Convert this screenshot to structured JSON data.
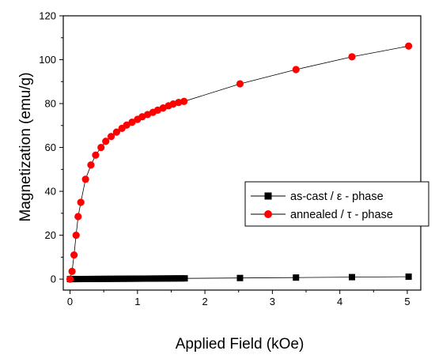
{
  "chart_data": {
    "type": "line",
    "title": "",
    "xlabel": "Applied Field (kOe)",
    "ylabel": "Magnetization (emu/g)",
    "xlim": [
      -0.1,
      5.2
    ],
    "ylim": [
      -5,
      120
    ],
    "xticks": [
      0,
      1,
      2,
      3,
      4,
      5
    ],
    "yticks": [
      0,
      20,
      40,
      60,
      80,
      100,
      120
    ],
    "grid": false,
    "legend_position": "center-right",
    "series": [
      {
        "name": "as-cast / ε - phase",
        "marker": "square",
        "color": "#000000",
        "x": [
          0,
          0.05,
          0.1,
          0.15,
          0.2,
          0.25,
          0.3,
          0.35,
          0.4,
          0.45,
          0.5,
          0.55,
          0.6,
          0.65,
          0.7,
          0.75,
          0.8,
          0.85,
          0.9,
          0.95,
          1.0,
          1.05,
          1.1,
          1.15,
          1.2,
          1.25,
          1.3,
          1.35,
          1.4,
          1.45,
          1.5,
          1.55,
          1.6,
          1.65,
          1.7,
          2.52,
          3.35,
          4.18,
          5.02
        ],
        "y": [
          0,
          0.01,
          0.02,
          0.03,
          0.04,
          0.05,
          0.06,
          0.07,
          0.08,
          0.09,
          0.1,
          0.11,
          0.12,
          0.13,
          0.14,
          0.15,
          0.16,
          0.17,
          0.18,
          0.19,
          0.2,
          0.21,
          0.22,
          0.23,
          0.24,
          0.25,
          0.26,
          0.27,
          0.28,
          0.29,
          0.3,
          0.31,
          0.32,
          0.33,
          0.34,
          0.5,
          0.7,
          0.9,
          1.1
        ]
      },
      {
        "name": "annealed / τ - phase",
        "marker": "circle",
        "color": "#ff0000",
        "x": [
          0.0,
          0.03,
          0.06,
          0.09,
          0.12,
          0.16,
          0.23,
          0.31,
          0.38,
          0.46,
          0.53,
          0.61,
          0.69,
          0.77,
          0.84,
          0.92,
          1.0,
          1.07,
          1.15,
          1.23,
          1.3,
          1.38,
          1.46,
          1.53,
          1.61,
          1.69,
          2.52,
          3.35,
          4.18,
          5.02
        ],
        "y": [
          0,
          3.5,
          11,
          20,
          28.5,
          35,
          45.5,
          52,
          56.5,
          60,
          62.8,
          65,
          67,
          68.7,
          70.2,
          71.5,
          72.8,
          74,
          75,
          76,
          77,
          78,
          79,
          79.8,
          80.5,
          81,
          89,
          95.5,
          101.3,
          106.2
        ]
      }
    ]
  }
}
